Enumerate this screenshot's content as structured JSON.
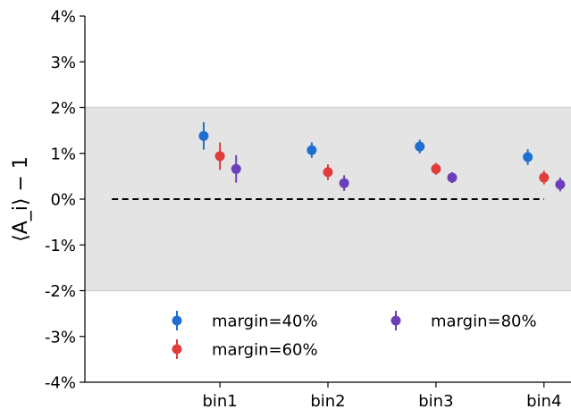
{
  "chart_data": {
    "type": "scatter",
    "ylabel": "⟨A_i⟩ − 1",
    "ylim": [
      -4,
      4
    ],
    "yticks": [
      -4,
      -3,
      -2,
      -1,
      0,
      1,
      2,
      3,
      4
    ],
    "ytick_labels": [
      "-4%",
      "-3%",
      "-2%",
      "-1%",
      "0%",
      "1%",
      "2%",
      "3%",
      "4%"
    ],
    "categories": [
      "bin1",
      "bin2",
      "bin3",
      "bin4"
    ],
    "xlim": [
      -0.25,
      4.25
    ],
    "band": [
      -2,
      2
    ],
    "reference_line": 0,
    "reference_line_x": [
      0,
      4.0
    ],
    "grid": false,
    "legend_placement": "lower-center",
    "series": [
      {
        "name": "margin=40%",
        "color": "#1f6fd0",
        "offset": -0.15,
        "values": [
          1.38,
          1.07,
          1.15,
          0.92
        ],
        "errors": [
          0.3,
          0.17,
          0.15,
          0.17
        ]
      },
      {
        "name": "margin=60%",
        "color": "#e03c3c",
        "offset": 0.0,
        "values": [
          0.94,
          0.59,
          0.66,
          0.47
        ],
        "errors": [
          0.3,
          0.17,
          0.13,
          0.15
        ]
      },
      {
        "name": "margin=80%",
        "color": "#6a3fb8",
        "offset": 0.15,
        "values": [
          0.66,
          0.35,
          0.47,
          0.32
        ],
        "errors": [
          0.3,
          0.17,
          0.12,
          0.15
        ]
      }
    ]
  }
}
